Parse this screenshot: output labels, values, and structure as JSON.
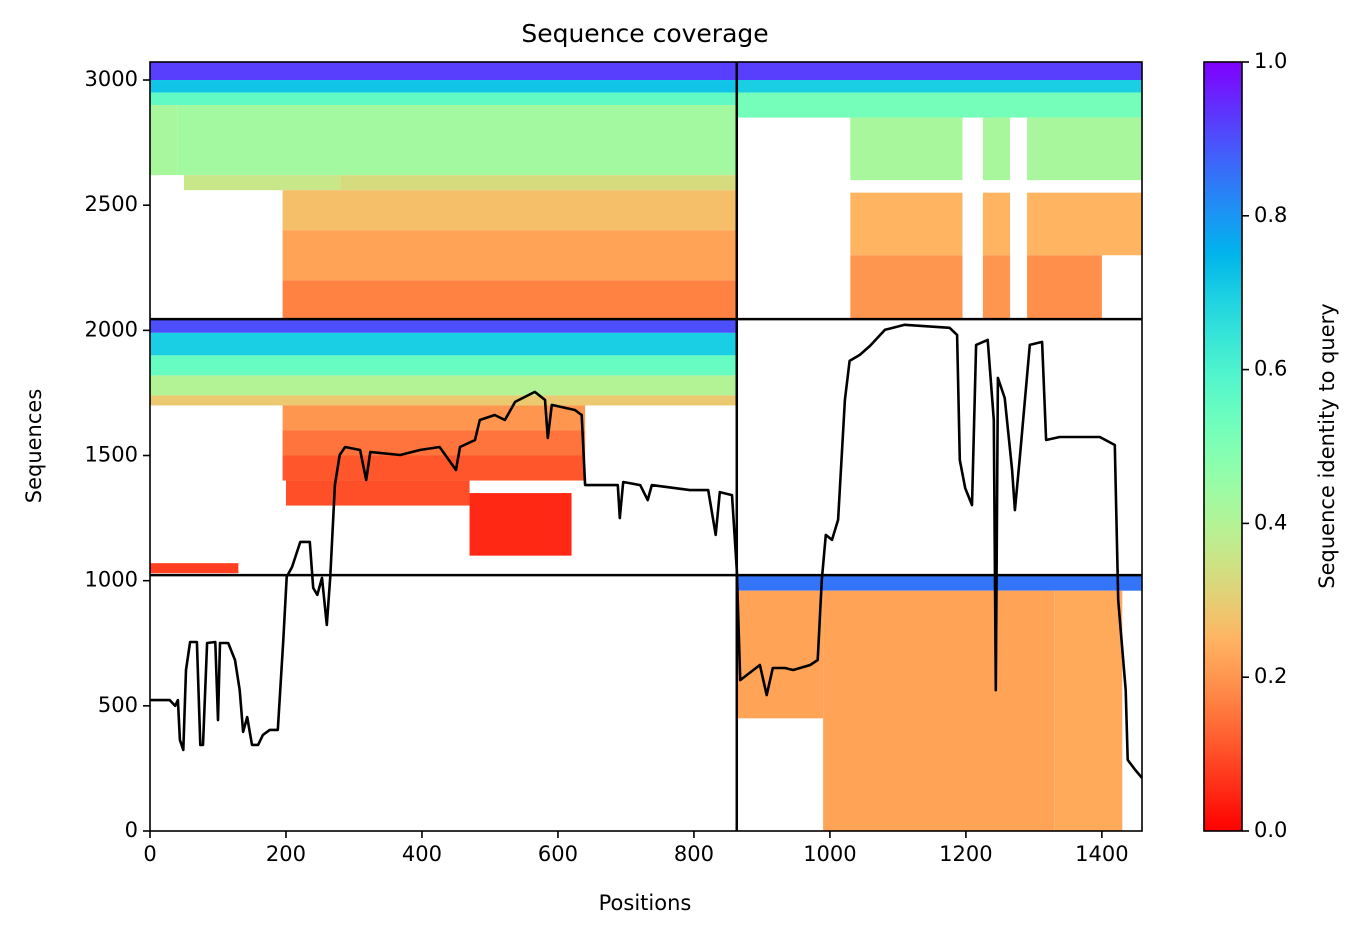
{
  "chart_data": {
    "type": "coverage",
    "title": "Sequence coverage",
    "xlabel": "Positions",
    "ylabel": "Sequences",
    "xlim": [
      0,
      1459
    ],
    "ylim": [
      0,
      3072
    ],
    "xticks": [
      0,
      200,
      400,
      600,
      800,
      1000,
      1200,
      1400
    ],
    "yticks": [
      0,
      500,
      1000,
      1500,
      2000,
      2500,
      3000
    ],
    "block_boundaries": {
      "x": [
        863
      ],
      "y": [
        1022,
        2045
      ]
    },
    "colorbar": {
      "label": "Sequence identity to query",
      "lim": [
        0,
        1
      ],
      "ticks": [
        {
          "value": 0,
          "label": "0.0"
        },
        {
          "value": 0.2,
          "label": "0.2"
        },
        {
          "value": 0.4,
          "label": "0.4"
        },
        {
          "value": 0.6,
          "label": "0.6"
        },
        {
          "value": 0.8,
          "label": "0.8"
        },
        {
          "value": 1,
          "label": "1.0"
        }
      ]
    },
    "blocks": [
      {
        "x": [
          0,
          863
        ],
        "y": [
          3000,
          3072
        ],
        "identity": 0.92
      },
      {
        "x": [
          0,
          863
        ],
        "y": [
          2950,
          3000
        ],
        "identity": 0.72
      },
      {
        "x": [
          0,
          863
        ],
        "y": [
          2900,
          2950
        ],
        "identity": 0.56
      },
      {
        "x": [
          0,
          40
        ],
        "y": [
          2620,
          2900
        ],
        "identity": 0.42
      },
      {
        "x": [
          40,
          863
        ],
        "y": [
          2620,
          2900
        ],
        "identity": 0.43
      },
      {
        "x": [
          50,
          280
        ],
        "y": [
          2560,
          2620
        ],
        "identity": 0.36
      },
      {
        "x": [
          280,
          863
        ],
        "y": [
          2560,
          2620
        ],
        "identity": 0.33
      },
      {
        "x": [
          195,
          863
        ],
        "y": [
          2400,
          2560
        ],
        "identity": 0.27
      },
      {
        "x": [
          195,
          863
        ],
        "y": [
          2200,
          2400
        ],
        "identity": 0.22
      },
      {
        "x": [
          195,
          863
        ],
        "y": [
          2045,
          2200
        ],
        "identity": 0.17
      },
      {
        "x": [
          863,
          1459
        ],
        "y": [
          3000,
          3072
        ],
        "identity": 0.92
      },
      {
        "x": [
          863,
          1459
        ],
        "y": [
          2950,
          3000
        ],
        "identity": 0.7
      },
      {
        "x": [
          863,
          1459
        ],
        "y": [
          2850,
          2950
        ],
        "identity": 0.52
      },
      {
        "x": [
          1030,
          1195
        ],
        "y": [
          2600,
          2850
        ],
        "identity": 0.42
      },
      {
        "x": [
          1225,
          1265
        ],
        "y": [
          2600,
          2850
        ],
        "identity": 0.42
      },
      {
        "x": [
          1290,
          1459
        ],
        "y": [
          2600,
          2850
        ],
        "identity": 0.42
      },
      {
        "x": [
          1030,
          1195
        ],
        "y": [
          2300,
          2550
        ],
        "identity": 0.25
      },
      {
        "x": [
          1225,
          1265
        ],
        "y": [
          2300,
          2550
        ],
        "identity": 0.25
      },
      {
        "x": [
          1290,
          1459
        ],
        "y": [
          2300,
          2550
        ],
        "identity": 0.25
      },
      {
        "x": [
          1030,
          1195
        ],
        "y": [
          2045,
          2300
        ],
        "identity": 0.2
      },
      {
        "x": [
          1225,
          1265
        ],
        "y": [
          2045,
          2300
        ],
        "identity": 0.2
      },
      {
        "x": [
          1290,
          1400
        ],
        "y": [
          2045,
          2300
        ],
        "identity": 0.19
      },
      {
        "x": [
          0,
          863
        ],
        "y": [
          1990,
          2045
        ],
        "identity": 0.9
      },
      {
        "x": [
          0,
          863
        ],
        "y": [
          1900,
          1990
        ],
        "identity": 0.7
      },
      {
        "x": [
          0,
          863
        ],
        "y": [
          1820,
          1900
        ],
        "identity": 0.55
      },
      {
        "x": [
          0,
          863
        ],
        "y": [
          1740,
          1820
        ],
        "identity": 0.4
      },
      {
        "x": [
          0,
          863
        ],
        "y": [
          1700,
          1740
        ],
        "identity": 0.29
      },
      {
        "x": [
          195,
          640
        ],
        "y": [
          1600,
          1700
        ],
        "identity": 0.2
      },
      {
        "x": [
          195,
          640
        ],
        "y": [
          1500,
          1600
        ],
        "identity": 0.15
      },
      {
        "x": [
          195,
          640
        ],
        "y": [
          1400,
          1500
        ],
        "identity": 0.11
      },
      {
        "x": [
          200,
          470
        ],
        "y": [
          1300,
          1400
        ],
        "identity": 0.1
      },
      {
        "x": [
          470,
          620
        ],
        "y": [
          1100,
          1350
        ],
        "identity": 0.05
      },
      {
        "x": [
          0,
          130
        ],
        "y": [
          1030,
          1070
        ],
        "identity": 0.08
      },
      {
        "x": [
          863,
          1459
        ],
        "y": [
          960,
          1022
        ],
        "identity": 0.85
      },
      {
        "x": [
          990,
          1330
        ],
        "y": [
          0,
          960
        ],
        "identity": 0.22
      },
      {
        "x": [
          863,
          990
        ],
        "y": [
          450,
          960
        ],
        "identity": 0.22
      },
      {
        "x": [
          1330,
          1430
        ],
        "y": [
          0,
          960
        ],
        "identity": 0.23
      }
    ],
    "coverage": {
      "x": [
        0,
        29,
        37,
        41,
        44,
        49,
        53,
        59,
        69,
        74,
        78,
        84,
        96,
        100,
        103,
        115,
        125,
        132,
        137,
        143,
        150,
        159,
        166,
        176,
        188,
        196,
        201,
        209,
        221,
        235,
        240,
        246,
        253,
        260,
        265,
        272,
        279,
        287,
        309,
        318,
        324,
        368,
        397,
        426,
        450,
        456,
        478,
        485,
        507,
        522,
        537,
        566,
        581,
        585,
        591,
        625,
        635,
        640,
        676,
        688,
        691,
        696,
        721,
        732,
        738,
        794,
        821,
        832,
        838,
        856,
        863,
        868,
        897,
        907,
        916,
        934,
        946,
        971,
        982,
        988,
        994,
        1003,
        1012,
        1022,
        1029,
        1044,
        1059,
        1081,
        1110,
        1176,
        1187,
        1191,
        1199,
        1209,
        1215,
        1232,
        1241,
        1244,
        1247,
        1257,
        1268,
        1272,
        1279,
        1294,
        1312,
        1318,
        1338,
        1397,
        1419,
        1424,
        1435,
        1438,
        1449,
        1459
      ],
      "y": [
        523,
        523,
        500,
        523,
        364,
        324,
        643,
        755,
        755,
        344,
        344,
        751,
        755,
        443,
        751,
        751,
        683,
        563,
        396,
        455,
        344,
        344,
        384,
        404,
        404,
        763,
        1015,
        1055,
        1155,
        1155,
        971,
        943,
        1011,
        823,
        1011,
        1382,
        1502,
        1534,
        1522,
        1402,
        1514,
        1502,
        1522,
        1534,
        1442,
        1534,
        1562,
        1642,
        1662,
        1642,
        1714,
        1754,
        1722,
        1570,
        1702,
        1682,
        1662,
        1382,
        1382,
        1382,
        1250,
        1394,
        1382,
        1322,
        1382,
        1362,
        1362,
        1183,
        1354,
        1342,
        1043,
        603,
        663,
        543,
        651,
        651,
        643,
        663,
        683,
        1003,
        1183,
        1163,
        1243,
        1722,
        1878,
        1902,
        1938,
        2002,
        2022,
        2010,
        1982,
        1482,
        1370,
        1302,
        1942,
        1962,
        1642,
        563,
        1810,
        1730,
        1442,
        1282,
        1482,
        1942,
        1954,
        1562,
        1574,
        1574,
        1542,
        923,
        563,
        284,
        244,
        212
      ]
    }
  }
}
